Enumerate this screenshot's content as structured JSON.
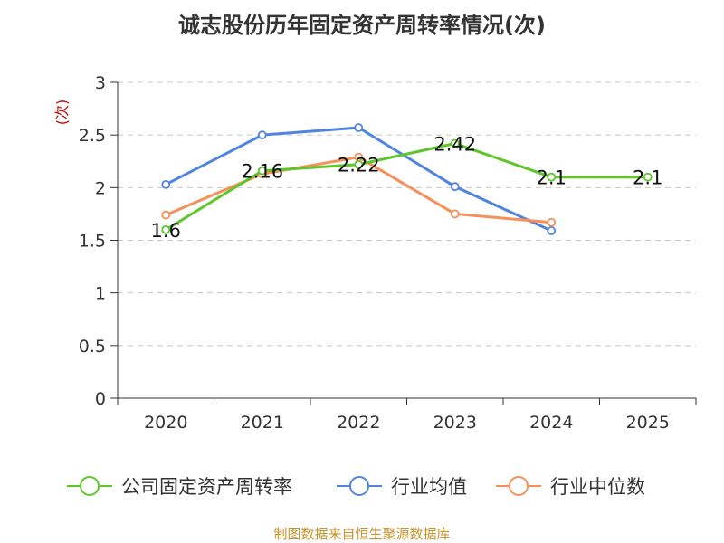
{
  "chart_data": {
    "type": "line",
    "title": "诚志股份历年固定资产周转率情况(次)",
    "ylabel": "(次)",
    "xlabel": "",
    "categories": [
      "2020",
      "2021",
      "2022",
      "2023",
      "2024",
      "2025"
    ],
    "ylim": [
      0,
      3
    ],
    "yticks": [
      0,
      0.5,
      1,
      1.5,
      2,
      2.5,
      3
    ],
    "ytick_labels": [
      "0",
      "0.5",
      "1",
      "1.5",
      "2",
      "2.5",
      "3"
    ],
    "grid": true,
    "legend_position": "bottom",
    "series": [
      {
        "name": "公司固定资产周转率",
        "color": "#5ec52a",
        "values": [
          1.6,
          2.16,
          2.22,
          2.42,
          2.1,
          2.1
        ],
        "labels": [
          "1.6",
          "2.16",
          "2.22",
          "2.42",
          "2.1",
          "2.1"
        ]
      },
      {
        "name": "行业均值",
        "color": "#4f85e0",
        "values": [
          2.03,
          2.5,
          2.57,
          2.01,
          1.59,
          null
        ]
      },
      {
        "name": "行业中位数",
        "color": "#f5905a",
        "values": [
          1.74,
          2.13,
          2.29,
          1.75,
          1.67,
          null
        ]
      }
    ],
    "source": "制图数据来自恒生聚源数据库"
  }
}
